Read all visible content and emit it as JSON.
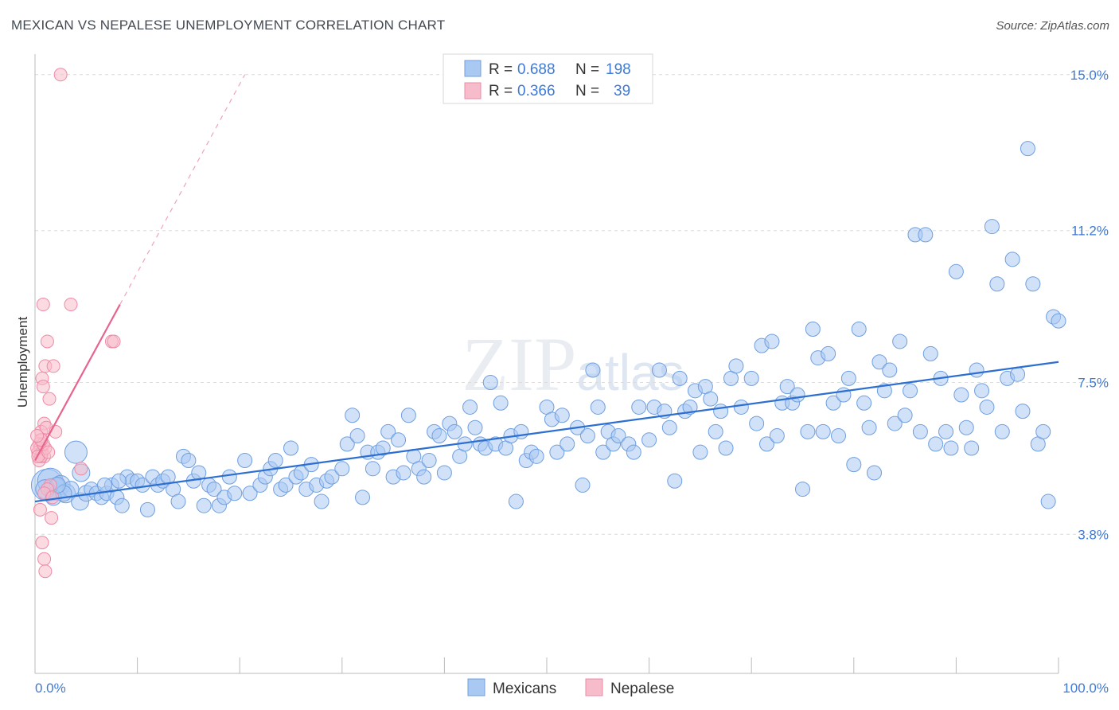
{
  "title": "MEXICAN VS NEPALESE UNEMPLOYMENT CORRELATION CHART",
  "source": "Source: ZipAtlas.com",
  "watermark": "ZIPatlas",
  "colors": {
    "mexican_fill": "#a9c8f2",
    "mexican_stroke": "#6f9fe0",
    "mexican_line": "#2c6fd1",
    "nepalese_fill": "#f7bccb",
    "nepalese_stroke": "#ee8aa6",
    "nepalese_line": "#e8648c",
    "tick_label": "#3f7ad6",
    "grid": "#dcdcdc"
  },
  "legend": {
    "rows": [
      {
        "r_label": "R =",
        "r_value": "0.688",
        "n_label": "N =",
        "n_value": "198"
      },
      {
        "r_label": "R =",
        "r_value": "0.366",
        "n_label": "N =",
        "n_value": "39"
      }
    ]
  },
  "chart_data": {
    "type": "scatter",
    "title": "MEXICAN VS NEPALESE UNEMPLOYMENT CORRELATION CHART",
    "xlabel": "",
    "ylabel": "Unemployment",
    "xlim": [
      0,
      100
    ],
    "ylim": [
      0.8,
      15.5
    ],
    "x_tick_labels": [
      "0.0%",
      "100.0%"
    ],
    "y_ticks": [
      3.8,
      7.5,
      11.2,
      15.0
    ],
    "y_tick_labels": [
      "3.8%",
      "7.5%",
      "11.2%",
      "15.0%"
    ],
    "grid": true,
    "legend_position": "bottom-center",
    "series": [
      {
        "name": "Mexicans",
        "r": 0.688,
        "n": 198,
        "trend": {
          "x0": 0,
          "y0": 4.6,
          "x1": 100,
          "y1": 8.0
        },
        "points": [
          [
            1.2,
            5.0,
            20
          ],
          [
            1.5,
            5.1,
            16
          ],
          [
            2.0,
            4.9,
            14
          ],
          [
            2.5,
            5.0,
            12
          ],
          [
            3.0,
            4.8,
            12
          ],
          [
            1.0,
            4.9,
            12
          ],
          [
            1.8,
            4.7,
            10
          ],
          [
            4.0,
            5.8,
            14
          ],
          [
            4.5,
            5.3,
            11
          ],
          [
            4.4,
            4.6,
            11
          ],
          [
            5.0,
            4.8,
            10
          ],
          [
            5.5,
            4.9,
            9
          ],
          [
            6.0,
            4.8,
            9
          ],
          [
            6.5,
            4.7,
            9
          ],
          [
            7.0,
            4.8,
            9
          ],
          [
            7.5,
            5.0,
            9
          ],
          [
            8.0,
            4.7,
            9
          ],
          [
            8.5,
            4.5,
            9
          ],
          [
            9.0,
            5.2,
            9
          ],
          [
            9.5,
            5.1,
            9
          ],
          [
            10.0,
            5.1,
            9
          ],
          [
            10.5,
            5.0,
            9
          ],
          [
            11.0,
            4.4,
            9
          ],
          [
            11.5,
            5.2,
            9
          ],
          [
            12.0,
            5.0,
            9
          ],
          [
            12.5,
            5.1,
            9
          ],
          [
            13.0,
            5.2,
            9
          ],
          [
            13.5,
            4.9,
            9
          ],
          [
            14.0,
            4.6,
            9
          ],
          [
            14.5,
            5.7,
            9
          ],
          [
            15.0,
            5.6,
            9
          ],
          [
            15.5,
            5.1,
            9
          ],
          [
            16.0,
            5.3,
            9
          ],
          [
            16.5,
            4.5,
            9
          ],
          [
            17.0,
            5.0,
            9
          ],
          [
            17.5,
            4.9,
            9
          ],
          [
            18.0,
            4.5,
            9
          ],
          [
            18.5,
            4.7,
            9
          ],
          [
            19.0,
            5.2,
            9
          ],
          [
            19.5,
            4.8,
            9
          ],
          [
            20.5,
            5.6,
            9
          ],
          [
            21.0,
            4.8,
            9
          ],
          [
            22.0,
            5.0,
            9
          ],
          [
            22.5,
            5.2,
            9
          ],
          [
            23.0,
            5.4,
            9
          ],
          [
            23.5,
            5.6,
            9
          ],
          [
            24.0,
            4.9,
            9
          ],
          [
            24.5,
            5.0,
            9
          ],
          [
            25.0,
            5.9,
            9
          ],
          [
            25.5,
            5.2,
            9
          ],
          [
            26.0,
            5.3,
            9
          ],
          [
            26.5,
            4.9,
            9
          ],
          [
            27.0,
            5.5,
            9
          ],
          [
            27.5,
            5.0,
            9
          ],
          [
            28.0,
            4.6,
            9
          ],
          [
            28.5,
            5.1,
            9
          ],
          [
            29.0,
            5.2,
            9
          ],
          [
            30.0,
            5.4,
            9
          ],
          [
            30.5,
            6.0,
            9
          ],
          [
            31.0,
            6.7,
            9
          ],
          [
            31.5,
            6.2,
            9
          ],
          [
            32.0,
            4.7,
            9
          ],
          [
            32.5,
            5.8,
            9
          ],
          [
            33.0,
            5.4,
            9
          ],
          [
            33.5,
            5.8,
            9
          ],
          [
            34.0,
            5.9,
            9
          ],
          [
            34.5,
            6.3,
            9
          ],
          [
            35.0,
            5.2,
            9
          ],
          [
            35.5,
            6.1,
            9
          ],
          [
            36.0,
            5.3,
            9
          ],
          [
            36.5,
            6.7,
            9
          ],
          [
            37.0,
            5.7,
            9
          ],
          [
            37.5,
            5.4,
            9
          ],
          [
            38.0,
            5.2,
            9
          ],
          [
            38.5,
            5.6,
            9
          ],
          [
            39.0,
            6.3,
            9
          ],
          [
            39.5,
            6.2,
            9
          ],
          [
            40.0,
            5.3,
            9
          ],
          [
            40.5,
            6.5,
            9
          ],
          [
            41.0,
            6.3,
            9
          ],
          [
            41.5,
            5.7,
            9
          ],
          [
            42.0,
            6.0,
            9
          ],
          [
            42.5,
            6.9,
            9
          ],
          [
            43.0,
            6.4,
            9
          ],
          [
            43.5,
            6.0,
            9
          ],
          [
            44.0,
            5.9,
            9
          ],
          [
            44.5,
            7.5,
            9
          ],
          [
            45.0,
            6.0,
            9
          ],
          [
            45.5,
            7.0,
            9
          ],
          [
            46.0,
            5.9,
            9
          ],
          [
            46.5,
            6.2,
            9
          ],
          [
            47.0,
            4.6,
            9
          ],
          [
            47.5,
            6.3,
            9
          ],
          [
            48.0,
            5.6,
            9
          ],
          [
            48.5,
            5.8,
            9
          ],
          [
            49.0,
            5.7,
            9
          ],
          [
            50.0,
            6.9,
            9
          ],
          [
            50.5,
            6.6,
            9
          ],
          [
            51.0,
            5.8,
            9
          ],
          [
            51.5,
            6.7,
            9
          ],
          [
            52.0,
            6.0,
            9
          ],
          [
            53.0,
            6.4,
            9
          ],
          [
            53.5,
            5.0,
            9
          ],
          [
            54.0,
            6.2,
            9
          ],
          [
            54.5,
            7.8,
            9
          ],
          [
            55.0,
            6.9,
            9
          ],
          [
            55.5,
            5.8,
            9
          ],
          [
            56.0,
            6.3,
            9
          ],
          [
            56.5,
            6.0,
            9
          ],
          [
            57.0,
            6.2,
            9
          ],
          [
            58.0,
            6.0,
            9
          ],
          [
            58.5,
            5.8,
            9
          ],
          [
            59.0,
            6.9,
            9
          ],
          [
            60.0,
            6.1,
            9
          ],
          [
            60.5,
            6.9,
            9
          ],
          [
            61.0,
            7.8,
            9
          ],
          [
            61.5,
            6.8,
            9
          ],
          [
            62.0,
            6.4,
            9
          ],
          [
            62.5,
            5.1,
            9
          ],
          [
            63.0,
            7.6,
            9
          ],
          [
            63.5,
            6.8,
            9
          ],
          [
            64.0,
            6.9,
            9
          ],
          [
            64.5,
            7.3,
            9
          ],
          [
            65.0,
            5.8,
            9
          ],
          [
            65.5,
            7.4,
            9
          ],
          [
            66.0,
            7.1,
            9
          ],
          [
            66.5,
            6.3,
            9
          ],
          [
            67.0,
            6.8,
            9
          ],
          [
            67.5,
            5.9,
            9
          ],
          [
            68.0,
            7.6,
            9
          ],
          [
            68.5,
            7.9,
            9
          ],
          [
            69.0,
            6.9,
            9
          ],
          [
            70.0,
            7.6,
            9
          ],
          [
            70.5,
            6.5,
            9
          ],
          [
            71.0,
            8.4,
            9
          ],
          [
            71.5,
            6.0,
            9
          ],
          [
            72.0,
            8.5,
            9
          ],
          [
            72.5,
            6.2,
            9
          ],
          [
            73.0,
            7.0,
            9
          ],
          [
            73.5,
            7.4,
            9
          ],
          [
            74.0,
            7.0,
            9
          ],
          [
            74.5,
            7.2,
            9
          ],
          [
            75.0,
            4.9,
            9
          ],
          [
            75.5,
            6.3,
            9
          ],
          [
            76.0,
            8.8,
            9
          ],
          [
            76.5,
            8.1,
            9
          ],
          [
            77.0,
            6.3,
            9
          ],
          [
            77.5,
            8.2,
            9
          ],
          [
            78.0,
            7.0,
            9
          ],
          [
            78.5,
            6.2,
            9
          ],
          [
            79.0,
            7.2,
            9
          ],
          [
            79.5,
            7.6,
            9
          ],
          [
            80.0,
            5.5,
            9
          ],
          [
            80.5,
            8.8,
            9
          ],
          [
            81.0,
            7.0,
            9
          ],
          [
            81.5,
            6.4,
            9
          ],
          [
            82.0,
            5.3,
            9
          ],
          [
            82.5,
            8.0,
            9
          ],
          [
            83.0,
            7.3,
            9
          ],
          [
            83.5,
            7.8,
            9
          ],
          [
            84.0,
            6.5,
            9
          ],
          [
            84.5,
            8.5,
            9
          ],
          [
            85.0,
            6.7,
            9
          ],
          [
            85.5,
            7.3,
            9
          ],
          [
            86.0,
            11.1,
            9
          ],
          [
            86.5,
            6.3,
            9
          ],
          [
            87.0,
            11.1,
            9
          ],
          [
            87.5,
            8.2,
            9
          ],
          [
            88.0,
            6.0,
            9
          ],
          [
            88.5,
            7.6,
            9
          ],
          [
            89.0,
            6.3,
            9
          ],
          [
            89.5,
            5.9,
            9
          ],
          [
            90.0,
            10.2,
            9
          ],
          [
            90.5,
            7.2,
            9
          ],
          [
            91.0,
            6.4,
            9
          ],
          [
            91.5,
            5.9,
            9
          ],
          [
            92.0,
            7.8,
            9
          ],
          [
            92.5,
            7.3,
            9
          ],
          [
            93.0,
            6.9,
            9
          ],
          [
            93.5,
            11.3,
            9
          ],
          [
            94.0,
            9.9,
            9
          ],
          [
            94.5,
            6.3,
            9
          ],
          [
            95.0,
            7.6,
            9
          ],
          [
            95.5,
            10.5,
            9
          ],
          [
            96.0,
            7.7,
            9
          ],
          [
            96.5,
            6.8,
            9
          ],
          [
            97.0,
            13.2,
            9
          ],
          [
            97.5,
            9.9,
            9
          ],
          [
            98.0,
            6.0,
            9
          ],
          [
            98.5,
            6.3,
            9
          ],
          [
            99.0,
            4.6,
            9
          ],
          [
            99.5,
            9.1,
            9
          ],
          [
            100.0,
            9.0,
            9
          ],
          [
            3.5,
            4.9,
            10
          ],
          [
            2.8,
            4.8,
            10
          ],
          [
            2.2,
            5.0,
            10
          ],
          [
            6.8,
            5.0,
            9
          ],
          [
            8.2,
            5.1,
            9
          ]
        ]
      },
      {
        "name": "Nepalese",
        "r": 0.366,
        "n": 39,
        "trend": {
          "x0": 0,
          "y0": 5.6,
          "x1": 8.3,
          "y1": 9.4
        },
        "trend_dashed": {
          "x0": 8.3,
          "y0": 9.4,
          "x1": 20.5,
          "y1": 15.0
        },
        "points": [
          [
            2.5,
            15.0
          ],
          [
            0.8,
            9.4
          ],
          [
            3.5,
            9.4
          ],
          [
            1.2,
            8.5
          ],
          [
            7.5,
            8.5
          ],
          [
            7.7,
            8.5
          ],
          [
            1.0,
            7.9
          ],
          [
            1.8,
            7.9
          ],
          [
            0.7,
            7.6
          ],
          [
            0.8,
            7.4
          ],
          [
            1.4,
            7.1
          ],
          [
            0.9,
            6.5
          ],
          [
            0.6,
            6.3
          ],
          [
            1.1,
            6.4
          ],
          [
            2.0,
            6.3
          ],
          [
            0.4,
            6.0
          ],
          [
            0.5,
            5.9
          ],
          [
            0.3,
            5.8
          ],
          [
            0.7,
            5.8
          ],
          [
            0.9,
            5.7
          ],
          [
            0.4,
            5.6
          ],
          [
            0.6,
            5.7
          ],
          [
            1.0,
            5.9
          ],
          [
            0.2,
            5.9
          ],
          [
            0.8,
            6.0
          ],
          [
            1.5,
            5.0
          ],
          [
            1.2,
            4.9
          ],
          [
            0.9,
            4.8
          ],
          [
            1.7,
            4.7
          ],
          [
            0.5,
            4.4
          ],
          [
            1.6,
            4.2
          ],
          [
            0.7,
            3.6
          ],
          [
            0.9,
            3.2
          ],
          [
            1.0,
            2.9
          ],
          [
            4.5,
            5.4
          ],
          [
            0.3,
            5.7
          ],
          [
            0.6,
            6.1
          ],
          [
            1.3,
            5.8
          ],
          [
            0.2,
            6.2
          ]
        ]
      }
    ]
  },
  "bottom_legend": [
    {
      "label": "Mexicans"
    },
    {
      "label": "Nepalese"
    }
  ]
}
